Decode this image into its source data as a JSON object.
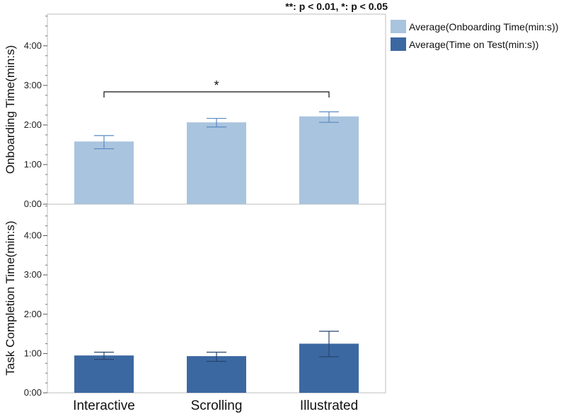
{
  "annotation": "**: p < 0.01, *: p < 0.05",
  "chart_data": [
    {
      "type": "bar",
      "ylabel": "Onboarding Time(min:s)",
      "categories": [
        "Interactive",
        "Scrolling",
        "Illustrated"
      ],
      "ylim_seconds": [
        0,
        288
      ],
      "yticks": [
        "0:00",
        "1:00",
        "2:00",
        "3:00",
        "4:00"
      ],
      "series": [
        {
          "name": "Average(Onboarding Time(min:s))",
          "color": "#a9c4de",
          "values_seconds": [
            95,
            124,
            133
          ],
          "error_low_seconds": [
            84,
            117,
            124
          ],
          "error_high_seconds": [
            104,
            130,
            140
          ]
        }
      ],
      "significance": {
        "from": "Interactive",
        "to": "Illustrated",
        "label": "*"
      }
    },
    {
      "type": "bar",
      "ylabel": "Task Completion Time(min:s)",
      "categories": [
        "Interactive",
        "Scrolling",
        "Illustrated"
      ],
      "ylim_seconds": [
        0,
        288
      ],
      "yticks": [
        "0:00",
        "1:00",
        "2:00",
        "3:00",
        "4:00"
      ],
      "series": [
        {
          "name": "Average(Time on Test(min:s))",
          "color": "#3c68a2",
          "values_seconds": [
            57,
            56,
            75
          ],
          "error_low_seconds": [
            51,
            48,
            55
          ],
          "error_high_seconds": [
            62,
            62,
            94
          ]
        }
      ]
    }
  ],
  "legend": [
    {
      "label": "Average(Onboarding Time(min:s))",
      "color": "#a9c4de"
    },
    {
      "label": "Average(Time on Test(min:s))",
      "color": "#3c68a2"
    }
  ]
}
